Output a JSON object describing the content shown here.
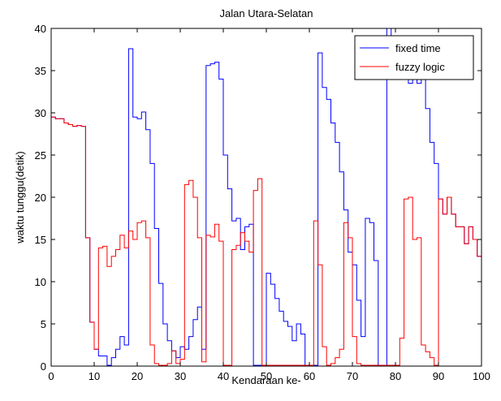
{
  "chart_data": {
    "type": "line",
    "title": "Jalan Utara-Selatan",
    "xlabel": "Kendaraan ke-",
    "ylabel": "waktu tunggu(detik)",
    "xlim": [
      0,
      100
    ],
    "ylim": [
      0,
      40
    ],
    "xticks": [
      0,
      10,
      20,
      30,
      40,
      50,
      60,
      70,
      80,
      90,
      100
    ],
    "yticks": [
      0,
      5,
      10,
      15,
      20,
      25,
      30,
      35,
      40
    ],
    "grid": false,
    "legend_position": "top-right",
    "step": true,
    "series": [
      {
        "name": "fixed time",
        "color": "#0000ff",
        "x": [
          0,
          1,
          2,
          3,
          4,
          5,
          6,
          7,
          8,
          9,
          10,
          11,
          12,
          13,
          14,
          15,
          16,
          17,
          18,
          19,
          20,
          21,
          22,
          23,
          24,
          25,
          26,
          27,
          28,
          29,
          30,
          31,
          32,
          33,
          34,
          35,
          36,
          37,
          38,
          39,
          40,
          41,
          42,
          43,
          44,
          45,
          46,
          47,
          48,
          49,
          50,
          51,
          52,
          53,
          54,
          55,
          56,
          57,
          58,
          59,
          60,
          61,
          62,
          63,
          64,
          65,
          66,
          67,
          68,
          69,
          70,
          71,
          72,
          73,
          74,
          75,
          76,
          77,
          78,
          79,
          80,
          81,
          82,
          83,
          84,
          85,
          86,
          87,
          88,
          89,
          90,
          91,
          92,
          93,
          94,
          95,
          96,
          97,
          98,
          99,
          100
        ],
        "y": [
          29.5,
          29.3,
          29.3,
          28.8,
          28.6,
          28.4,
          28.5,
          28.4,
          15.2,
          5.2,
          2.0,
          1.2,
          1.2,
          0.1,
          1.0,
          2.0,
          3.5,
          2.5,
          37.6,
          29.5,
          29.3,
          30.1,
          28.0,
          24.0,
          16.3,
          9.8,
          5.0,
          3.0,
          1.8,
          1.0,
          2.3,
          2.0,
          3.5,
          5.5,
          7.0,
          2.0,
          35.6,
          35.8,
          36.0,
          34.0,
          25.0,
          21.0,
          17.2,
          17.5,
          13.8,
          16.5,
          16.8,
          0.1,
          0.1,
          0.1,
          11.0,
          9.7,
          8.0,
          6.5,
          5.3,
          4.7,
          3.0,
          5.0,
          3.8,
          0.1,
          0.1,
          0.1,
          37.1,
          33.0,
          31.6,
          28.8,
          26.5,
          23.0,
          18.5,
          13.5,
          12.0,
          7.8,
          3.5,
          17.5,
          17.0,
          12.5,
          0.1,
          0.1,
          42.0,
          37.0,
          34.0,
          36.0,
          35.5,
          33.5,
          36.0,
          33.5,
          34.0,
          30.5,
          26.5,
          24.0,
          19.8,
          18.0,
          20.0,
          18.0,
          16.5,
          16.5,
          14.5,
          16.5,
          15.0,
          13.0,
          13.0
        ]
      },
      {
        "name": "fuzzy logic",
        "color": "#ff0000",
        "x": [
          0,
          1,
          2,
          3,
          4,
          5,
          6,
          7,
          8,
          9,
          10,
          11,
          12,
          13,
          14,
          15,
          16,
          17,
          18,
          19,
          20,
          21,
          22,
          23,
          24,
          25,
          26,
          27,
          28,
          29,
          30,
          31,
          32,
          33,
          34,
          35,
          36,
          37,
          38,
          39,
          40,
          41,
          42,
          43,
          44,
          45,
          46,
          47,
          48,
          49,
          50,
          51,
          52,
          53,
          54,
          55,
          56,
          57,
          58,
          59,
          60,
          61,
          62,
          63,
          64,
          65,
          66,
          67,
          68,
          69,
          70,
          71,
          72,
          73,
          74,
          75,
          76,
          77,
          78,
          79,
          80,
          81,
          82,
          83,
          84,
          85,
          86,
          87,
          88,
          89,
          90,
          91,
          92,
          93,
          94,
          95,
          96,
          97,
          98,
          99,
          100
        ],
        "y": [
          29.5,
          29.3,
          29.3,
          28.8,
          28.6,
          28.4,
          28.5,
          28.4,
          15.2,
          5.2,
          2.0,
          14.0,
          14.2,
          11.8,
          13.0,
          13.8,
          15.5,
          14.0,
          16.0,
          15.0,
          17.0,
          17.2,
          15.2,
          2.5,
          0.3,
          0.1,
          0.1,
          0.3,
          1.8,
          0.3,
          0.8,
          21.5,
          22.0,
          20.0,
          15.2,
          0.5,
          15.5,
          15.3,
          16.8,
          14.8,
          0.1,
          0.1,
          13.8,
          14.3,
          15.8,
          14.8,
          13.5,
          20.8,
          22.2,
          0.1,
          0.1,
          0.1,
          0.1,
          0.1,
          0.1,
          0.1,
          0.1,
          0.1,
          0.1,
          0.1,
          0.1,
          17.2,
          12.0,
          2.3,
          0.1,
          0.3,
          1.0,
          2.0,
          17.0,
          15.2,
          3.5,
          0.3,
          0.1,
          0.1,
          0.1,
          0.1,
          0.1,
          0.1,
          0.1,
          0.1,
          0.1,
          3.3,
          19.8,
          20.0,
          15.0,
          15.2,
          2.5,
          1.7,
          1.0,
          0.1,
          19.8,
          18.0,
          20.0,
          18.0,
          16.5,
          16.5,
          14.5,
          16.5,
          15.0,
          13.0,
          13.0
        ]
      }
    ]
  }
}
